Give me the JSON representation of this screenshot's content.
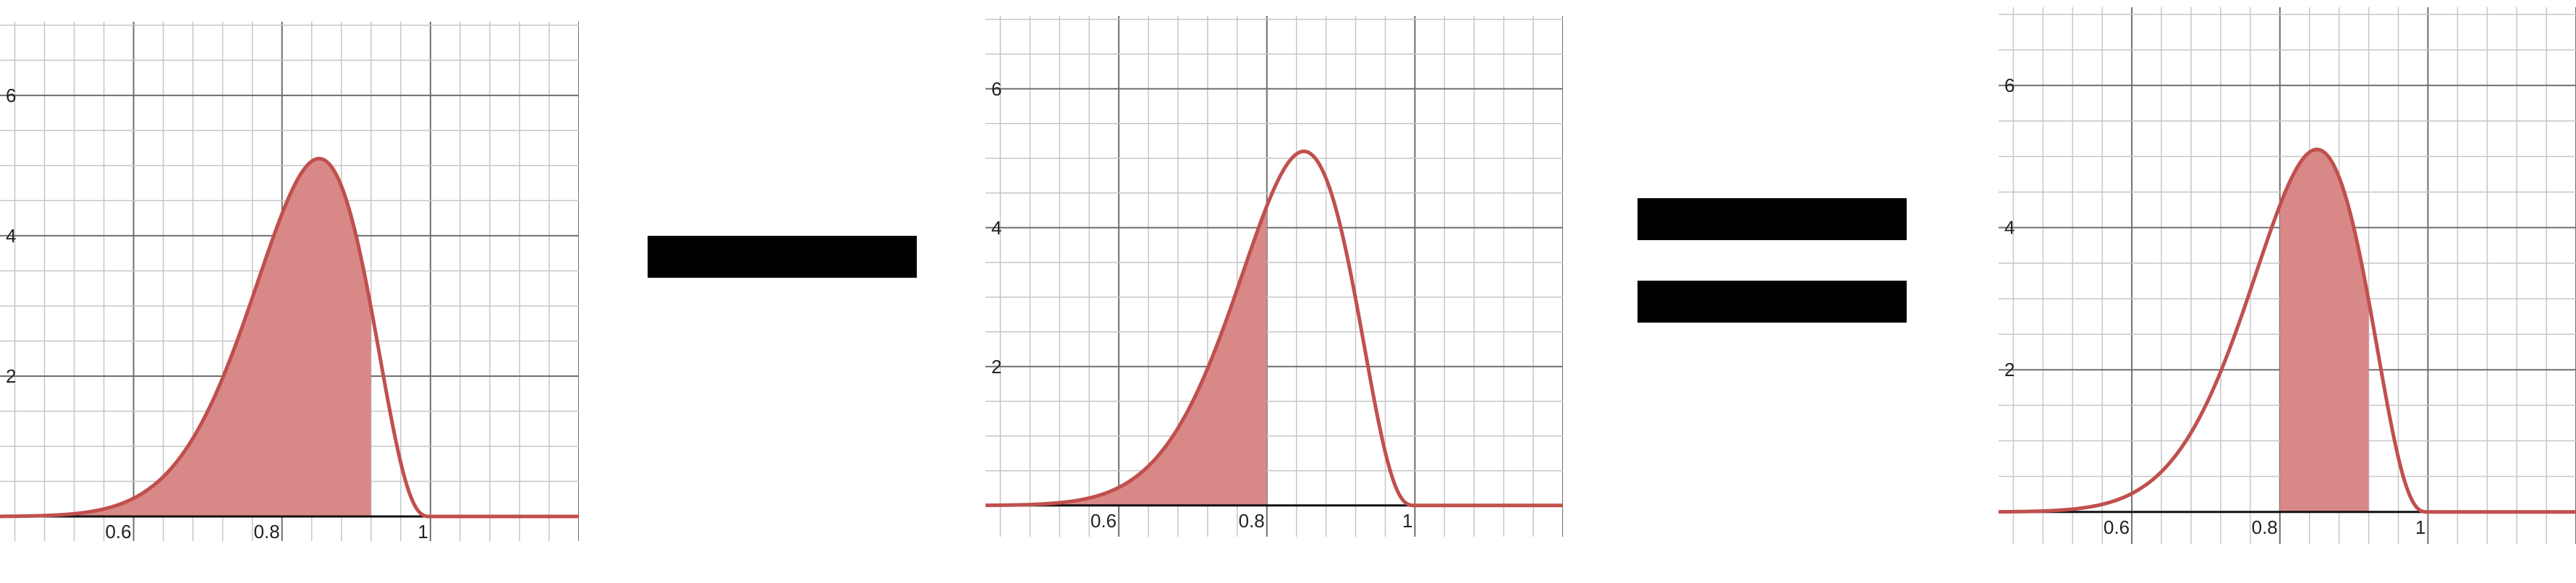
{
  "colors": {
    "curve": "#c0504d",
    "shade": "#d98888",
    "operator": "#000000"
  },
  "chart_data": [
    {
      "type": "area",
      "distribution": {
        "family": "beta",
        "alpha": 18,
        "beta": 4
      },
      "shaded_interval": [
        0,
        0.92
      ],
      "xlim": [
        0.42,
        1.2
      ],
      "ylim": [
        -0.35,
        7.05
      ],
      "x_ticks": [
        "0.6",
        "0.8",
        "1"
      ],
      "y_ticks": [
        "2",
        "4",
        "6"
      ],
      "grid": true
    },
    {
      "type": "area",
      "distribution": {
        "family": "beta",
        "alpha": 18,
        "beta": 4
      },
      "shaded_interval": [
        0,
        0.8
      ],
      "xlim": [
        0.42,
        1.2
      ],
      "ylim": [
        -0.45,
        7.05
      ],
      "x_ticks": [
        "0.6",
        "0.8",
        "1"
      ],
      "y_ticks": [
        "2",
        "4",
        "6"
      ],
      "grid": true
    },
    {
      "type": "area",
      "distribution": {
        "family": "beta",
        "alpha": 18,
        "beta": 4
      },
      "shaded_interval": [
        0.8,
        0.92
      ],
      "xlim": [
        0.42,
        1.2
      ],
      "ylim": [
        -0.45,
        7.1
      ],
      "x_ticks": [
        "0.6",
        "0.8",
        "1"
      ],
      "y_ticks": [
        "2",
        "4",
        "6"
      ],
      "grid": true
    }
  ],
  "operators": [
    "minus-sign",
    "equals-sign"
  ]
}
